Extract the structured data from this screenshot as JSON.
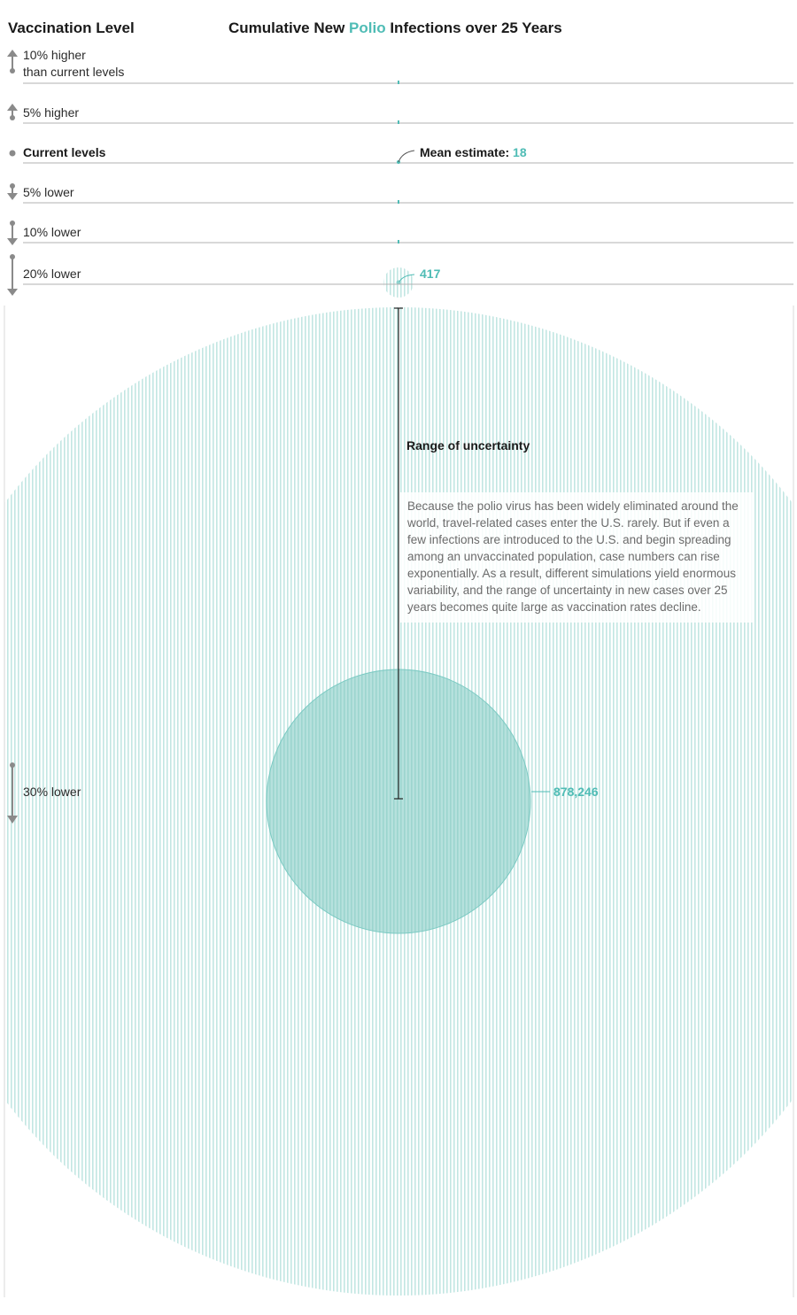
{
  "chart_data": {
    "type": "bubble",
    "title_prefix": "Cumulative New ",
    "title_highlight": "Polio",
    "title_suffix": " Infections over 25 Years",
    "row_header": "Vaccination Level",
    "rows": [
      {
        "label_lines": [
          "10% higher",
          "than current levels"
        ],
        "direction": "up",
        "magnitude": 10,
        "mean": 0,
        "bold": false
      },
      {
        "label_lines": [
          "5% higher"
        ],
        "direction": "up",
        "magnitude": 5,
        "mean": 0,
        "bold": false
      },
      {
        "label_lines": [
          "Current levels"
        ],
        "direction": "none",
        "magnitude": 0,
        "mean": 18,
        "bold": true
      },
      {
        "label_lines": [
          "5% lower"
        ],
        "direction": "down",
        "magnitude": 5,
        "mean": 0,
        "bold": false
      },
      {
        "label_lines": [
          "10% lower"
        ],
        "direction": "down",
        "magnitude": 10,
        "mean": 0,
        "bold": false
      },
      {
        "label_lines": [
          "20% lower"
        ],
        "direction": "down",
        "magnitude": 20,
        "mean": 417,
        "bold": false
      },
      {
        "label_lines": [
          "30% lower"
        ],
        "direction": "down",
        "magnitude": 30,
        "mean": 878246,
        "bold": false
      }
    ],
    "annotations": {
      "mean_estimate_label": "Mean estimate: ",
      "mean_estimate_value": "18",
      "value_20_lower": "417",
      "value_30_lower": "878,246",
      "uncertainty_title": "Range of uncertainty",
      "uncertainty_note": "Because the polio virus has been widely eliminated around the world, travel-related cases enter the U.S. rarely. But if even a few infections are introduced to the U.S. and begin spreading among an unvaccinated population, case numbers can rise exponentially. As a result, different simulations yield enormous variability, and the range of uncertainty in new cases over 25 years becomes quite large as vaccination rates decline."
    },
    "colors": {
      "accent": "#4fbcb5",
      "mean_fill": "#8fd3ce",
      "stripe": "#c8e9e6",
      "rule": "#9a9a9a",
      "arrow": "#8a8a8a"
    }
  }
}
